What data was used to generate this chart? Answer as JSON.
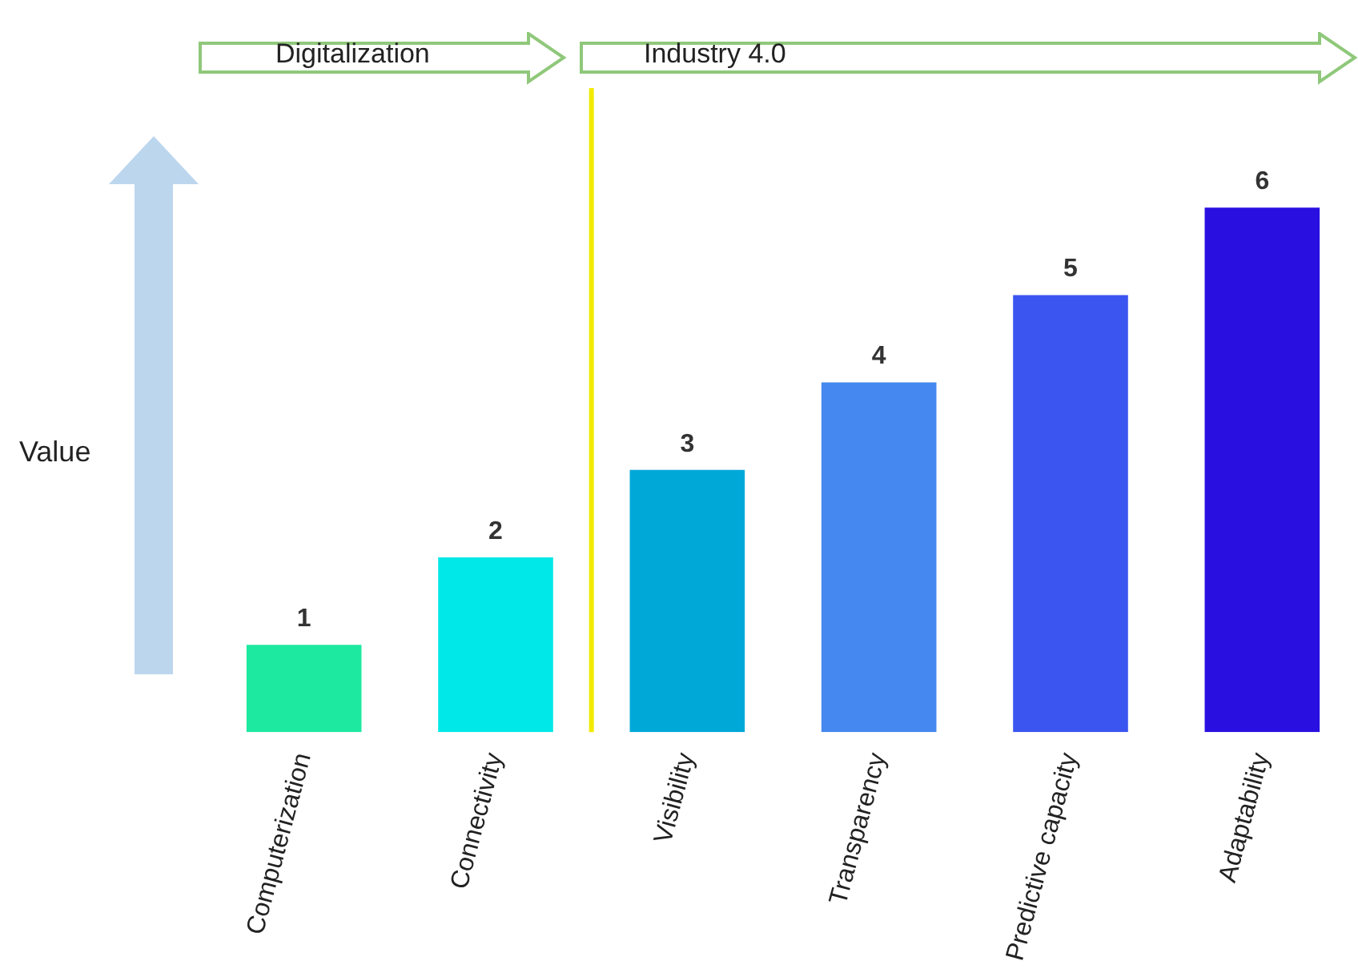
{
  "chart_data": {
    "type": "bar",
    "ylabel": "Value",
    "categories": [
      "Computerization",
      "Connectivity",
      "Visibility",
      "Transparency",
      "Predictive capacity",
      "Adaptability"
    ],
    "values": [
      1,
      2,
      3,
      4,
      5,
      6
    ],
    "colors": [
      "#1de9a0",
      "#00e8e8",
      "#00a8d8",
      "#4488f0",
      "#3a55f0",
      "#2a10e0"
    ],
    "ref_lines": [
      {
        "axis": "x",
        "value": "Visibility",
        "color": "#f2ea00"
      }
    ],
    "data_labels": true,
    "grid": false,
    "legend": false,
    "tick_labels": "x",
    "annotations": [
      "Digitalization",
      "Industry 4.0"
    ]
  }
}
